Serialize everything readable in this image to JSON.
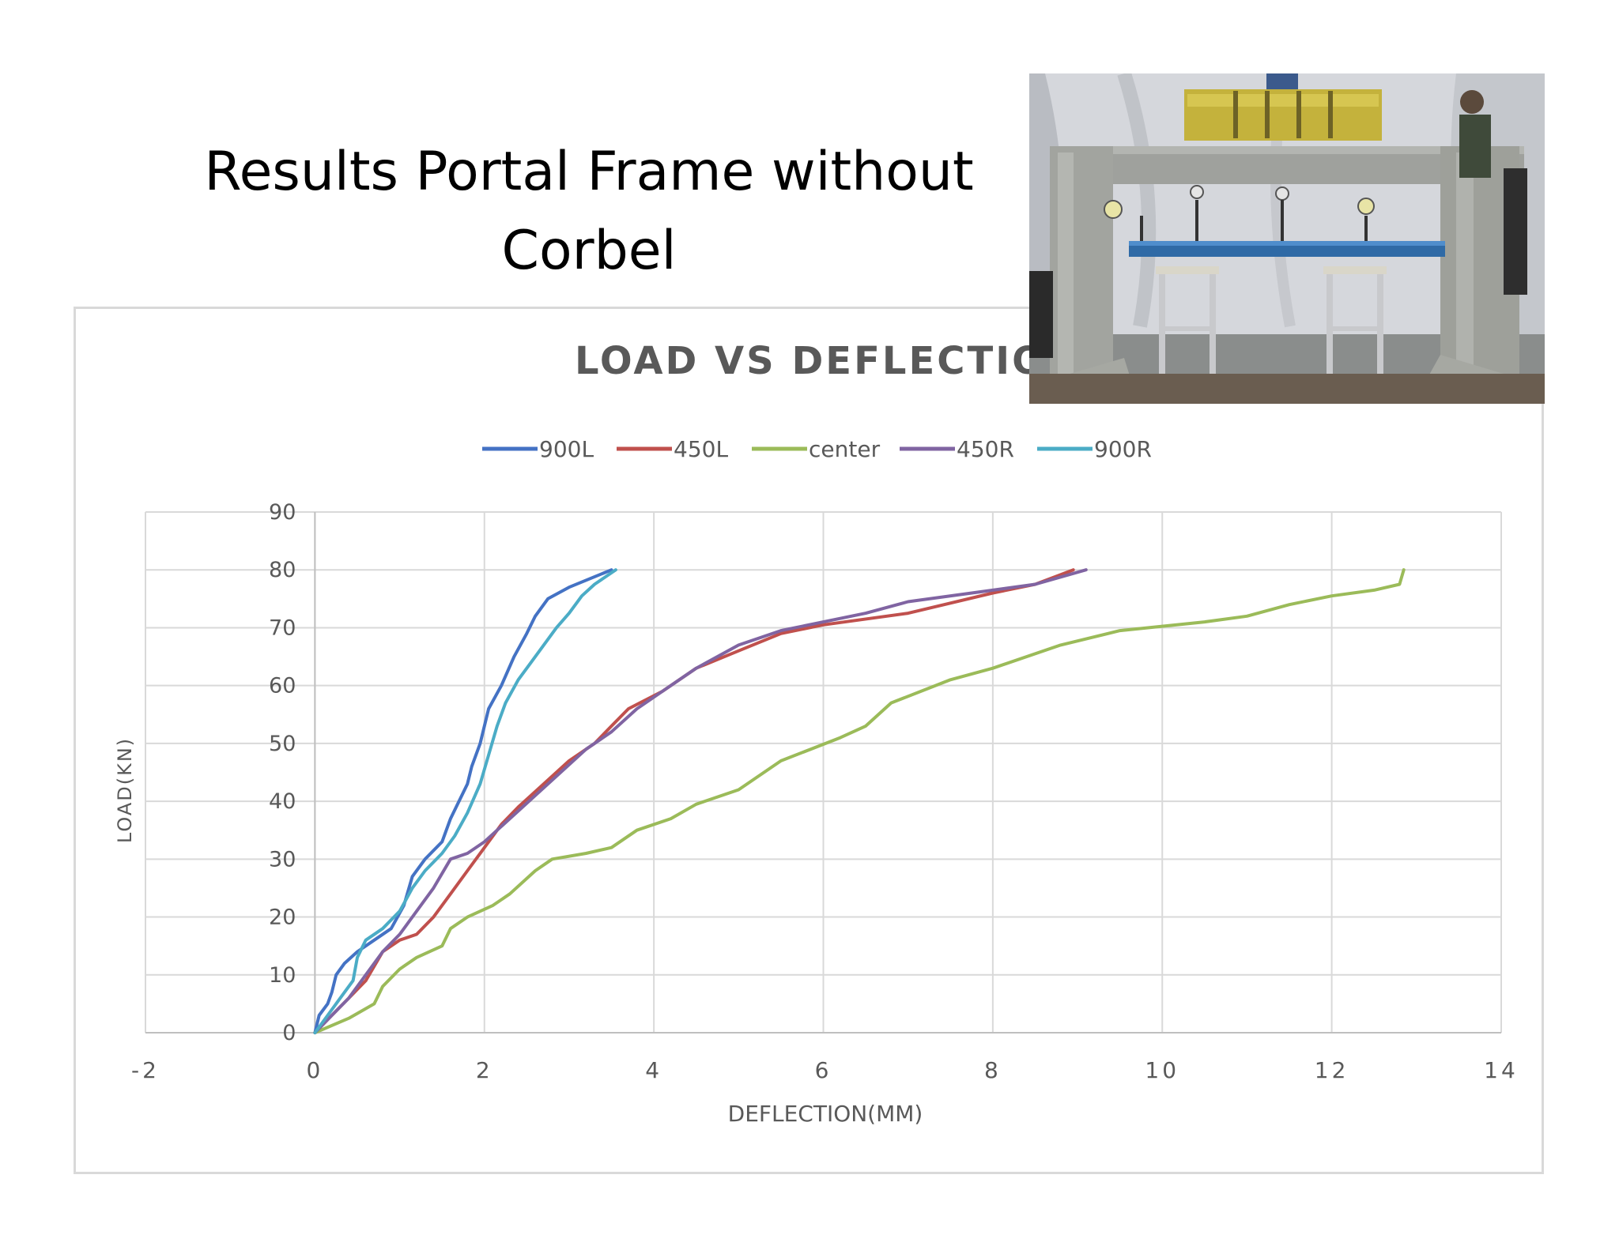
{
  "slide": {
    "title_line1": "Results Portal Frame without",
    "title_line2": "Corbel"
  },
  "photo": {
    "description_icon": "test-rig-photo"
  },
  "chart_data": {
    "type": "line",
    "title": "LOAD VS DEFLECTION",
    "xlabel": "DEFLECTION(MM)",
    "ylabel": "LOAD(KN)",
    "xlim": [
      -2,
      14
    ],
    "ylim": [
      0,
      90
    ],
    "xticks": [
      "-2",
      "0",
      "2",
      "4",
      "6",
      "8",
      "10",
      "12",
      "14"
    ],
    "yticks": [
      "0",
      "10",
      "20",
      "30",
      "40",
      "50",
      "60",
      "70",
      "80",
      "90"
    ],
    "grid": true,
    "legend_position": "top",
    "series": [
      {
        "name": "900L",
        "color": "#4472C4",
        "points": [
          [
            0,
            0
          ],
          [
            0.05,
            3
          ],
          [
            0.15,
            5
          ],
          [
            0.2,
            7
          ],
          [
            0.25,
            10
          ],
          [
            0.35,
            12
          ],
          [
            0.5,
            14
          ],
          [
            0.7,
            16
          ],
          [
            0.9,
            18
          ],
          [
            1.05,
            22
          ],
          [
            1.15,
            27
          ],
          [
            1.3,
            30
          ],
          [
            1.5,
            33
          ],
          [
            1.6,
            37
          ],
          [
            1.7,
            40
          ],
          [
            1.8,
            43
          ],
          [
            1.85,
            46
          ],
          [
            1.95,
            50
          ],
          [
            2.05,
            56
          ],
          [
            2.2,
            60
          ],
          [
            2.35,
            65
          ],
          [
            2.5,
            69
          ],
          [
            2.6,
            72
          ],
          [
            2.75,
            75
          ],
          [
            3.0,
            77
          ],
          [
            3.25,
            78.5
          ],
          [
            3.5,
            80
          ]
        ]
      },
      {
        "name": "450L",
        "color": "#C0504D",
        "points": [
          [
            0,
            0
          ],
          [
            0.2,
            3
          ],
          [
            0.4,
            6
          ],
          [
            0.6,
            9
          ],
          [
            0.8,
            14
          ],
          [
            1.0,
            16
          ],
          [
            1.2,
            17
          ],
          [
            1.4,
            20
          ],
          [
            1.6,
            24
          ],
          [
            1.8,
            28
          ],
          [
            2.0,
            32
          ],
          [
            2.2,
            36
          ],
          [
            2.4,
            39
          ],
          [
            2.7,
            43
          ],
          [
            3.0,
            47
          ],
          [
            3.3,
            50
          ],
          [
            3.5,
            53
          ],
          [
            3.7,
            56
          ],
          [
            4.1,
            59
          ],
          [
            4.5,
            63
          ],
          [
            5.0,
            66
          ],
          [
            5.5,
            69
          ],
          [
            6.0,
            70.5
          ],
          [
            7.0,
            72.5
          ],
          [
            8.0,
            76
          ],
          [
            8.5,
            77.5
          ],
          [
            8.95,
            80
          ]
        ]
      },
      {
        "name": "center",
        "color": "#9BBB59",
        "points": [
          [
            0,
            0
          ],
          [
            0.4,
            2.5
          ],
          [
            0.7,
            5
          ],
          [
            0.8,
            8
          ],
          [
            1.0,
            11
          ],
          [
            1.2,
            13
          ],
          [
            1.5,
            15
          ],
          [
            1.6,
            18
          ],
          [
            1.8,
            20
          ],
          [
            2.1,
            22
          ],
          [
            2.3,
            24
          ],
          [
            2.6,
            28
          ],
          [
            2.8,
            30
          ],
          [
            3.2,
            31
          ],
          [
            3.5,
            32
          ],
          [
            3.8,
            35
          ],
          [
            4.2,
            37
          ],
          [
            4.5,
            39.5
          ],
          [
            5.0,
            42
          ],
          [
            5.5,
            47
          ],
          [
            6.2,
            51
          ],
          [
            6.5,
            53
          ],
          [
            6.8,
            57
          ],
          [
            7.5,
            61
          ],
          [
            8.0,
            63
          ],
          [
            8.8,
            67
          ],
          [
            9.5,
            69.5
          ],
          [
            10.5,
            71
          ],
          [
            11.0,
            72
          ],
          [
            11.5,
            74
          ],
          [
            12.0,
            75.5
          ],
          [
            12.5,
            76.5
          ],
          [
            12.8,
            77.5
          ],
          [
            12.85,
            80
          ]
        ]
      },
      {
        "name": "450R",
        "color": "#8064A2",
        "points": [
          [
            0,
            0
          ],
          [
            0.2,
            3
          ],
          [
            0.4,
            6
          ],
          [
            0.6,
            10
          ],
          [
            0.8,
            14
          ],
          [
            1.0,
            17
          ],
          [
            1.2,
            21
          ],
          [
            1.4,
            25
          ],
          [
            1.6,
            30
          ],
          [
            1.8,
            31
          ],
          [
            2.0,
            33
          ],
          [
            2.3,
            37
          ],
          [
            2.6,
            41
          ],
          [
            2.9,
            45
          ],
          [
            3.2,
            49
          ],
          [
            3.5,
            52
          ],
          [
            3.8,
            56
          ],
          [
            4.1,
            59
          ],
          [
            4.5,
            63
          ],
          [
            5.0,
            67
          ],
          [
            5.5,
            69.5
          ],
          [
            6.0,
            71
          ],
          [
            6.5,
            72.5
          ],
          [
            7.0,
            74.5
          ],
          [
            8.0,
            76.5
          ],
          [
            8.5,
            77.5
          ],
          [
            9.1,
            80
          ]
        ]
      },
      {
        "name": "900R",
        "color": "#4BACC6",
        "points": [
          [
            0,
            0
          ],
          [
            0.15,
            3
          ],
          [
            0.3,
            6
          ],
          [
            0.45,
            9
          ],
          [
            0.5,
            13
          ],
          [
            0.6,
            16
          ],
          [
            0.8,
            18
          ],
          [
            1.0,
            21
          ],
          [
            1.15,
            25
          ],
          [
            1.3,
            28
          ],
          [
            1.5,
            31
          ],
          [
            1.65,
            34
          ],
          [
            1.8,
            38
          ],
          [
            1.95,
            43
          ],
          [
            2.05,
            48
          ],
          [
            2.15,
            53
          ],
          [
            2.25,
            57
          ],
          [
            2.4,
            61
          ],
          [
            2.55,
            64
          ],
          [
            2.7,
            67
          ],
          [
            2.85,
            70
          ],
          [
            3.0,
            72.5
          ],
          [
            3.15,
            75.5
          ],
          [
            3.3,
            77.5
          ],
          [
            3.55,
            80
          ]
        ]
      }
    ]
  }
}
